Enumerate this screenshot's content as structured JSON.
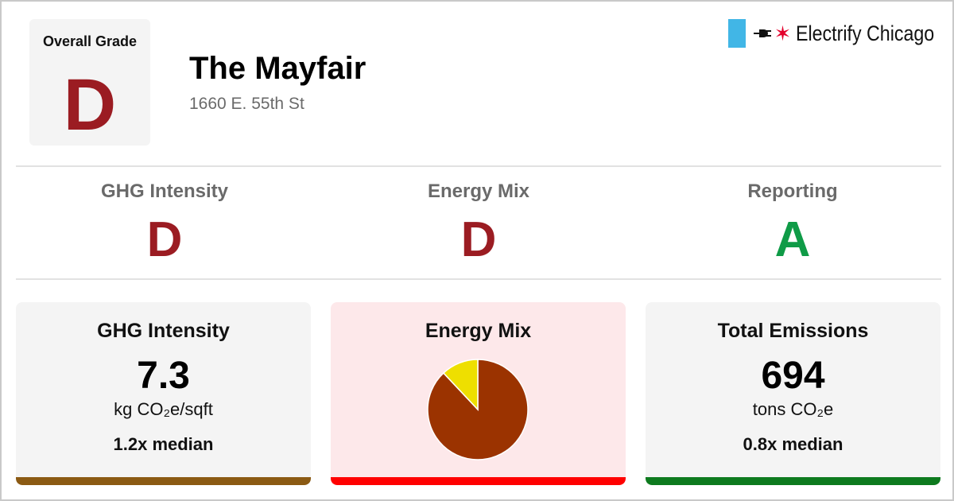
{
  "overall": {
    "label": "Overall Grade",
    "grade": "D"
  },
  "building": {
    "name": "The Mayfair",
    "address": "1660 E. 55th St"
  },
  "brand": {
    "name": "Electrify Chicago",
    "flag_color": "#41b6e6",
    "star_color": "#e4002b",
    "icons": [
      "plug-icon",
      "star-icon"
    ]
  },
  "colors": {
    "grade_d": "#9b1c22",
    "grade_a": "#0f9b47"
  },
  "subgrades": [
    {
      "label": "GHG Intensity",
      "grade": "D"
    },
    {
      "label": "Energy Mix",
      "grade": "D"
    },
    {
      "label": "Reporting",
      "grade": "A"
    }
  ],
  "cards": {
    "ghg": {
      "title": "GHG Intensity",
      "value": "7.3",
      "unit": "kg CO₂e/sqft",
      "median": "1.2x median",
      "bar_color": "#8b5a13"
    },
    "mix": {
      "title": "Energy Mix",
      "bar_color": "#ff0000",
      "background": "#fde8ea"
    },
    "emissions": {
      "title": "Total Emissions",
      "value": "694",
      "unit": "tons CO₂e",
      "median": "0.8x median",
      "bar_color": "#0d7a1e"
    }
  },
  "chart_data": {
    "type": "pie",
    "slices": [
      {
        "share": 0.88,
        "color": "#9b3300"
      },
      {
        "share": 0.12,
        "color": "#eedf00"
      }
    ]
  }
}
